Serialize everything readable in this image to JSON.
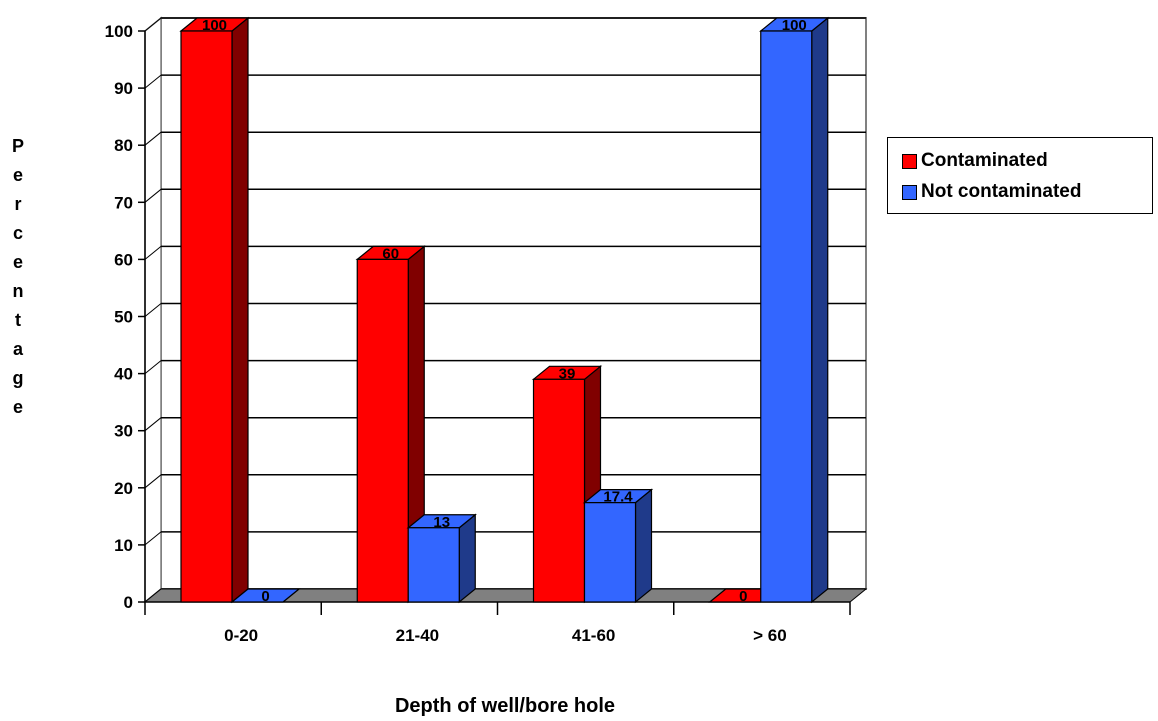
{
  "chart_data": {
    "type": "bar",
    "style": "3d-clustered",
    "categories": [
      "0-20",
      "21-40",
      "41-60",
      "> 60"
    ],
    "series": [
      {
        "name": "Contaminated",
        "values": [
          100,
          60,
          39,
          0
        ],
        "color": "#ff0000",
        "side_color": "#800000"
      },
      {
        "name": "Not contaminated",
        "values": [
          0,
          13,
          17.4,
          100
        ],
        "color": "#3366ff",
        "side_color": "#1f3a8a"
      }
    ],
    "y_ticks": [
      0,
      10,
      20,
      30,
      40,
      50,
      60,
      70,
      80,
      90,
      100
    ],
    "ylim": [
      0,
      100
    ],
    "xlabel": "Depth of well/bore hole",
    "ylabel": "Percentage",
    "grid": true,
    "legend_position": "right"
  }
}
